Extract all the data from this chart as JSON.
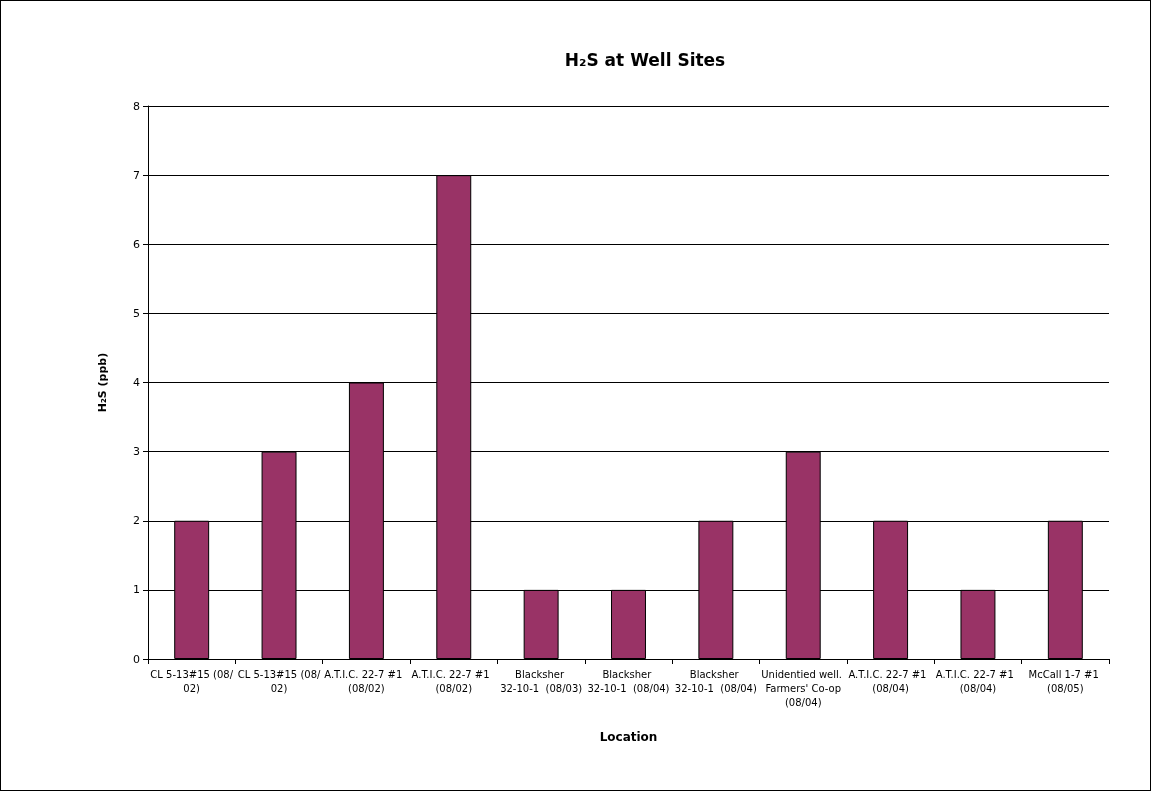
{
  "chart_data": {
    "type": "bar",
    "title": "H₂S at Well Sites",
    "xlabel": "Location",
    "ylabel": "H₂S (ppb)",
    "categories": [
      "CL 5-13#15 (08/02)",
      "CL 5-13#15 (08/02)",
      "A.T.I.C. 22-7 #1  (08/02)",
      "A.T.I.C. 22-7 #1  (08/02)",
      "Blacksher 32-10-1  (08/03)",
      "Blacksher 32-10-1  (08/04)",
      "Blacksher 32-10-1  (08/04)",
      "Unidentied well.  Farmers' Co-op (08/04)",
      "A.T.I.C. 22-7 #1  (08/04)",
      "A.T.I.C. 22-7 #1  (08/04)",
      "McCall 1-7 #1 (08/05)"
    ],
    "values": [
      2,
      3,
      4,
      7,
      1,
      1,
      2,
      3,
      2,
      1,
      2
    ],
    "color": "#993366",
    "ylim": [
      0,
      8
    ],
    "yticks": [
      0,
      1,
      2,
      3,
      4,
      5,
      6,
      7,
      8
    ],
    "grid": "y"
  }
}
